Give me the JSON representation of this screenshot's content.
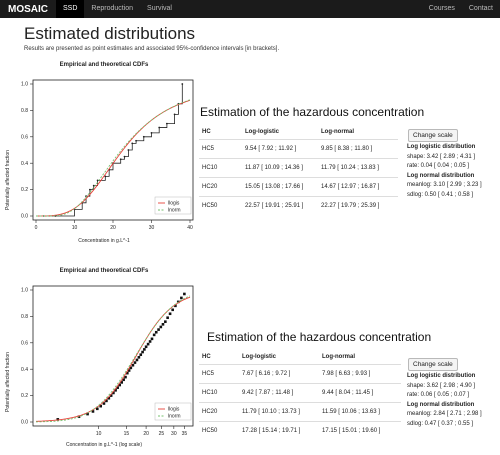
{
  "navbar": {
    "brand": "MOSAIC",
    "tabs": [
      {
        "label": "SSD",
        "active": true
      },
      {
        "label": "Reproduction",
        "active": false
      },
      {
        "label": "Survival",
        "active": false
      }
    ],
    "right_links": [
      "Courses",
      "Contact"
    ]
  },
  "page": {
    "title": "Estimated distributions",
    "subtitle": "Results are presented as point estimates and associated 95%-confidence intervals [in brackets]."
  },
  "panels": [
    {
      "plot_title": "Empirical and theoretical CDFs",
      "ylabel": "Potentially affected fraction",
      "xlabel": "Concentration in g.L^-1",
      "heading": "Estimation of the hazardous concentration",
      "table": {
        "headers": [
          "HC",
          "Log-logistic",
          "Log-normal"
        ],
        "rows": [
          [
            "HC5",
            "9.54 [ 7.92 ; 11.92 ]",
            "9.85 [ 8.38 ; 11.80 ]"
          ],
          [
            "HC10",
            "11.87 [ 10.09 ; 14.36 ]",
            "11.79 [ 10.24 ; 13.83 ]"
          ],
          [
            "HC20",
            "15.05 [ 13.08 ; 17.66 ]",
            "14.67 [ 12.97 ; 16.87 ]"
          ],
          [
            "HC50",
            "22.57 [ 19.91 ; 25.91 ]",
            "22.27 [ 19.79 ; 25.39 ]"
          ]
        ]
      },
      "button": "Change scale",
      "params": {
        "logistic_title": "Log logistic distribution",
        "logistic_lines": [
          "shape: 3.42 [ 2.89 ; 4.31 ]",
          "rate: 0.04 [ 0.04 ; 0.05 ]"
        ],
        "normal_title": "Log normal distribution",
        "normal_lines": [
          "meanlog: 3.10 [ 2.99 ; 3.23 ]",
          "sdlog: 0.50 [ 0.41 ; 0.58 ]"
        ]
      }
    },
    {
      "plot_title": "Empirical and theoretical CDFs",
      "ylabel": "Potentially affected fraction",
      "xlabel": "Concentration in g.L^-1 (log scale)",
      "heading": "Estimation of the hazardous concentration",
      "table": {
        "headers": [
          "HC",
          "Log-logistic",
          "Log-normal"
        ],
        "rows": [
          [
            "HC5",
            "7.67 [ 6.16 ; 9.72 ]",
            "7.98 [ 6.63 ; 9.93 ]"
          ],
          [
            "HC10",
            "9.42 [ 7.87 ; 11.48 ]",
            "9.44 [ 8.04 ; 11.45 ]"
          ],
          [
            "HC20",
            "11.79 [ 10.10 ; 13.73 ]",
            "11.59 [ 10.06 ; 13.63 ]"
          ],
          [
            "HC50",
            "17.28 [ 15.14 ; 19.71 ]",
            "17.15 [ 15.01 ; 19.60 ]"
          ]
        ]
      },
      "button": "Change scale",
      "params": {
        "logistic_title": "Log logistic distribution",
        "logistic_lines": [
          "shape: 3.62 [ 2.98 ; 4.90 ]",
          "rate: 0.06 [ 0.05 ; 0.07 ]"
        ],
        "normal_title": "Log normal distribution",
        "normal_lines": [
          "meanlog: 2.84 [ 2.71 ; 2.98 ]",
          "sdlog: 0.47 [ 0.37 ; 0.55 ]"
        ]
      }
    }
  ],
  "chart_data": [
    {
      "type": "line",
      "title": "Empirical and theoretical CDFs",
      "xlabel": "Concentration in g.L^-1",
      "ylabel": "Potentially affected fraction",
      "xlim": [
        0,
        40
      ],
      "ylim": [
        0,
        1
      ],
      "xticks": [
        0,
        10,
        20,
        30,
        40
      ],
      "yticks": [
        0.0,
        0.2,
        0.4,
        0.6,
        0.8,
        1.0
      ],
      "legend_position": "bottom-right",
      "series": [
        {
          "name": "llogis",
          "color": "#e8423a",
          "kind": "loglogistic",
          "shape": 3.42,
          "scale": 22.57
        },
        {
          "name": "lnorm",
          "color": "#76c06e",
          "kind": "lognormal",
          "meanlog": 3.1,
          "sdlog": 0.5
        }
      ],
      "empirical": {
        "x": [
          2,
          5,
          10,
          12,
          13,
          14,
          15,
          16,
          18,
          19,
          20,
          22,
          23,
          24,
          25,
          26,
          28,
          30,
          32,
          34,
          36,
          37,
          38
        ],
        "y": [
          0.0,
          0.0,
          0.05,
          0.1,
          0.15,
          0.2,
          0.23,
          0.27,
          0.3,
          0.35,
          0.4,
          0.43,
          0.45,
          0.5,
          0.55,
          0.57,
          0.6,
          0.63,
          0.67,
          0.7,
          0.77,
          0.85,
          1.0
        ]
      }
    },
    {
      "type": "scatter",
      "title": "Empirical and theoretical CDFs",
      "xlabel": "Concentration in g.L^-1 (log scale)",
      "ylabel": "Potentially affected fraction",
      "xlim": [
        4,
        38
      ],
      "ylim": [
        0,
        1
      ],
      "xscale": "log",
      "xticks": [
        10,
        15,
        20,
        25,
        30,
        35
      ],
      "yticks": [
        0.0,
        0.2,
        0.4,
        0.6,
        0.8,
        1.0
      ],
      "legend_position": "bottom-right",
      "series": [
        {
          "name": "llogis",
          "color": "#e8423a",
          "kind": "loglogistic",
          "shape": 3.62,
          "scale": 17.28
        },
        {
          "name": "lnorm",
          "color": "#76c06e",
          "kind": "lognormal",
          "meanlog": 2.84,
          "sdlog": 0.47
        }
      ],
      "empirical": {
        "x": [
          5.5,
          7.5,
          8.5,
          9.2,
          9.8,
          10.3,
          10.8,
          11.2,
          11.6,
          12.0,
          12.4,
          12.8,
          13.2,
          13.6,
          14.0,
          14.4,
          14.8,
          15.2,
          15.6,
          16.0,
          16.5,
          17.0,
          17.5,
          18.0,
          18.5,
          19.0,
          19.5,
          20.0,
          20.6,
          21.2,
          21.8,
          22.5,
          23.2,
          24.0,
          24.8,
          25.6,
          26.5,
          27.4,
          28.4,
          29.5,
          30.7,
          32.0,
          33.5,
          35.0
        ],
        "y": [
          0.02,
          0.04,
          0.06,
          0.08,
          0.1,
          0.12,
          0.14,
          0.16,
          0.18,
          0.2,
          0.22,
          0.24,
          0.26,
          0.28,
          0.3,
          0.32,
          0.34,
          0.37,
          0.39,
          0.41,
          0.43,
          0.45,
          0.47,
          0.49,
          0.51,
          0.53,
          0.55,
          0.57,
          0.59,
          0.61,
          0.63,
          0.66,
          0.68,
          0.7,
          0.72,
          0.74,
          0.76,
          0.79,
          0.82,
          0.85,
          0.88,
          0.91,
          0.94,
          0.97
        ]
      }
    }
  ]
}
